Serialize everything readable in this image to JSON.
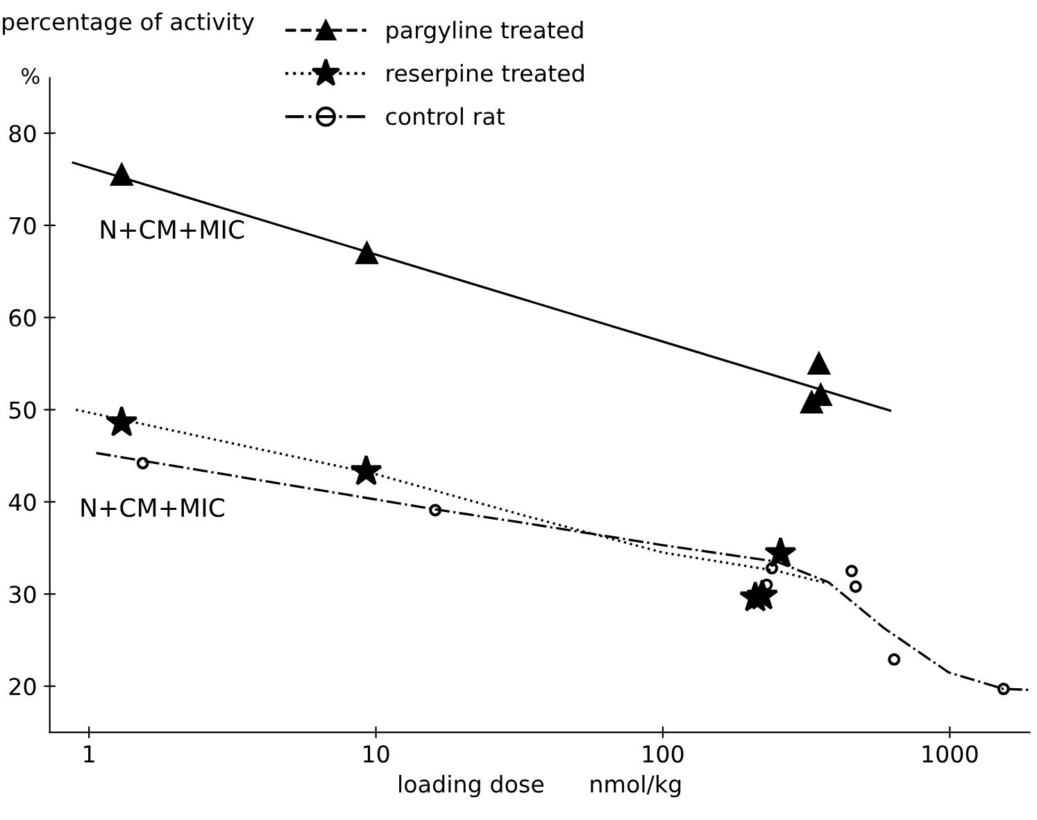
{
  "chart_data": {
    "type": "scatter",
    "xlabel": "loading dose      nmol/kg",
    "ylabel": "percentage of activity",
    "log": "x",
    "xlim": [
      0.73,
      1900
    ],
    "xticks": [
      1,
      10,
      100,
      1000
    ],
    "ylim": [
      15,
      86
    ],
    "yticks": [
      20,
      30,
      40,
      50,
      60,
      70,
      80
    ],
    "grid": false,
    "legend": "top",
    "annotations": [
      "%",
      "N+CM+MIC",
      "N+CM+MIC"
    ],
    "series": [
      {
        "name": "pargyline treated",
        "marker": "triangle",
        "line_style": "dashed",
        "color": "#000000",
        "x": [
          1.3,
          9.3,
          350,
          330,
          355
        ],
        "values": [
          75.5,
          67,
          55,
          50.8,
          51.6
        ]
      },
      {
        "name": "reserpine treated",
        "marker": "star",
        "line_style": "dotted",
        "color": "#000000",
        "x": [
          1.3,
          9.25,
          257,
          210,
          222
        ],
        "values": [
          48.6,
          43.3,
          34.4,
          29.6,
          29.8
        ]
      },
      {
        "name": "control rat",
        "marker": "circle",
        "line_style": "dashdot",
        "color": "#000000",
        "x": [
          1.54,
          16.1,
          240,
          230,
          455,
          470,
          640,
          1540
        ],
        "values": [
          44.2,
          39.1,
          32.8,
          31,
          32.5,
          30.8,
          22.9,
          19.7
        ]
      },
      {
        "type": "line",
        "line_style": "solid",
        "color": "#000000",
        "x": [
          0.88,
          620
        ],
        "values": [
          76.8,
          49.9
        ]
      },
      {
        "type": "line",
        "line_style": "dotted",
        "color": "#000000",
        "x": [
          0.9,
          10,
          33,
          100,
          250,
          370
        ],
        "values": [
          50,
          43,
          38.5,
          34.5,
          32.5,
          31.2
        ]
      },
      {
        "type": "line",
        "line_style": "dashdot",
        "color": "#000000",
        "x": [
          1.06,
          16,
          33,
          100,
          250,
          377,
          590,
          990,
          1540,
          1900
        ],
        "values": [
          45.3,
          39.2,
          37.7,
          35.3,
          33.5,
          31.3,
          26.3,
          21.5,
          19.7,
          19.6
        ]
      }
    ]
  }
}
